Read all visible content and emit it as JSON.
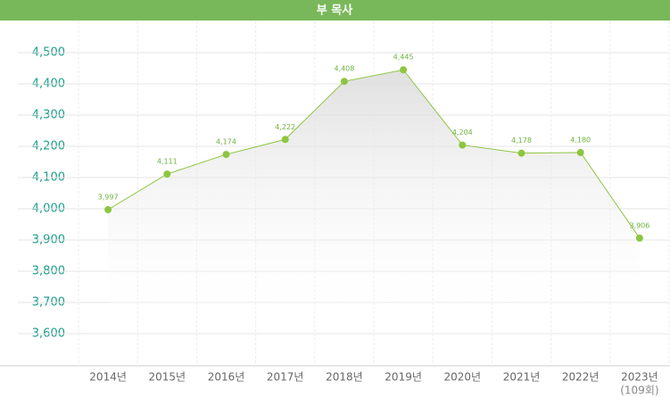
{
  "chart_data": {
    "type": "line",
    "title": "부 목사",
    "categories": [
      "2014년",
      "2015년",
      "2016년",
      "2017년",
      "2018년",
      "2019년",
      "2020년",
      "2021년",
      "2022년",
      "2023년"
    ],
    "category_sublabels": [
      null,
      null,
      null,
      null,
      null,
      null,
      null,
      null,
      null,
      "(109회)"
    ],
    "values": [
      3997,
      4111,
      4174,
      4222,
      4408,
      4445,
      4204,
      4178,
      4180,
      3906
    ],
    "value_labels": [
      "3,997",
      "4,111",
      "4,174",
      "4,222",
      "4,408",
      "4,445",
      "4,204",
      "4,178",
      "4,180",
      "3,906"
    ],
    "color": "#8cc63f",
    "ylim": [
      3497,
      4600
    ],
    "yticks": [
      {
        "value": 3600,
        "label": "3,600"
      },
      {
        "value": 3700,
        "label": "3,700"
      },
      {
        "value": 3800,
        "label": "3,800"
      },
      {
        "value": 3900,
        "label": "3,900"
      },
      {
        "value": 4000,
        "label": "4,000"
      },
      {
        "value": 4100,
        "label": "4,100"
      },
      {
        "value": 4200,
        "label": "4,200"
      },
      {
        "value": 4300,
        "label": "4,300"
      },
      {
        "value": 4400,
        "label": "4,400"
      },
      {
        "value": 4500,
        "label": "4,500"
      }
    ],
    "grid": true,
    "area": true
  }
}
